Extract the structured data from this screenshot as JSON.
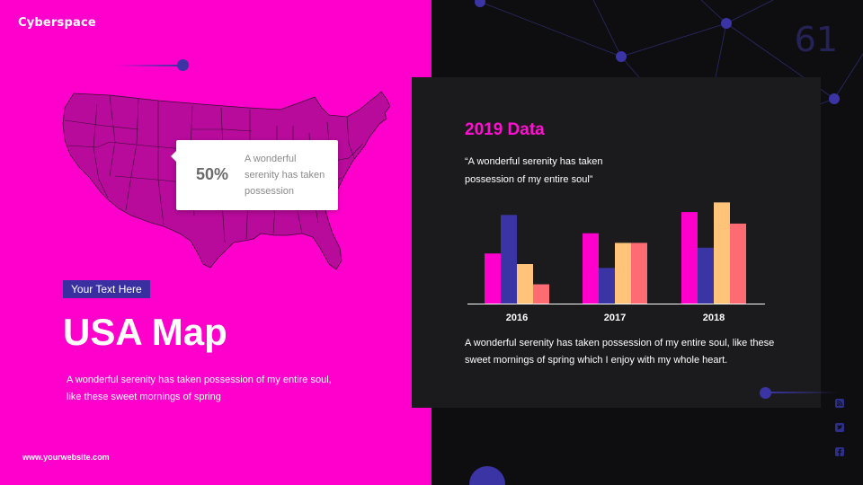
{
  "brand": {
    "text": "Cyberspace"
  },
  "page_number": "61",
  "left": {
    "tag": "Your Text Here",
    "title": "USA Map",
    "subtitle": "A wonderful serenity has taken possession of my entire soul, like these sweet mornings of spring",
    "website": "www.yourwebsite.com",
    "callout": {
      "percent": "50%",
      "text": "A wonderful serenity has taken possession"
    },
    "map_fill": "#b80b9b"
  },
  "card": {
    "title": "2019 Data",
    "quote": "“A wonderful serenity has taken possession of my entire soul”",
    "body": "A wonderful serenity has taken possession of my entire soul, like these sweet mornings of spring which I enjoy with my whole heart."
  },
  "social": {
    "icons": [
      "rss-icon",
      "twitter-icon",
      "facebook-icon"
    ]
  },
  "colors": {
    "magenta": "#ff00cc",
    "accent_purple": "#3a34a4",
    "series": [
      "#ff00cc",
      "#3a34a4",
      "#ffc37a",
      "#ff6b73"
    ]
  },
  "chart_data": {
    "type": "bar",
    "categories": [
      "2016",
      "2017",
      "2018"
    ],
    "series": [
      {
        "values": [
          52,
          73,
          95
        ]
      },
      {
        "values": [
          92,
          37,
          58
        ]
      },
      {
        "values": [
          41,
          63,
          105
        ]
      },
      {
        "values": [
          20,
          63,
          83
        ]
      }
    ],
    "ylim": [
      0,
      110
    ],
    "grid": false,
    "legend": "none"
  }
}
